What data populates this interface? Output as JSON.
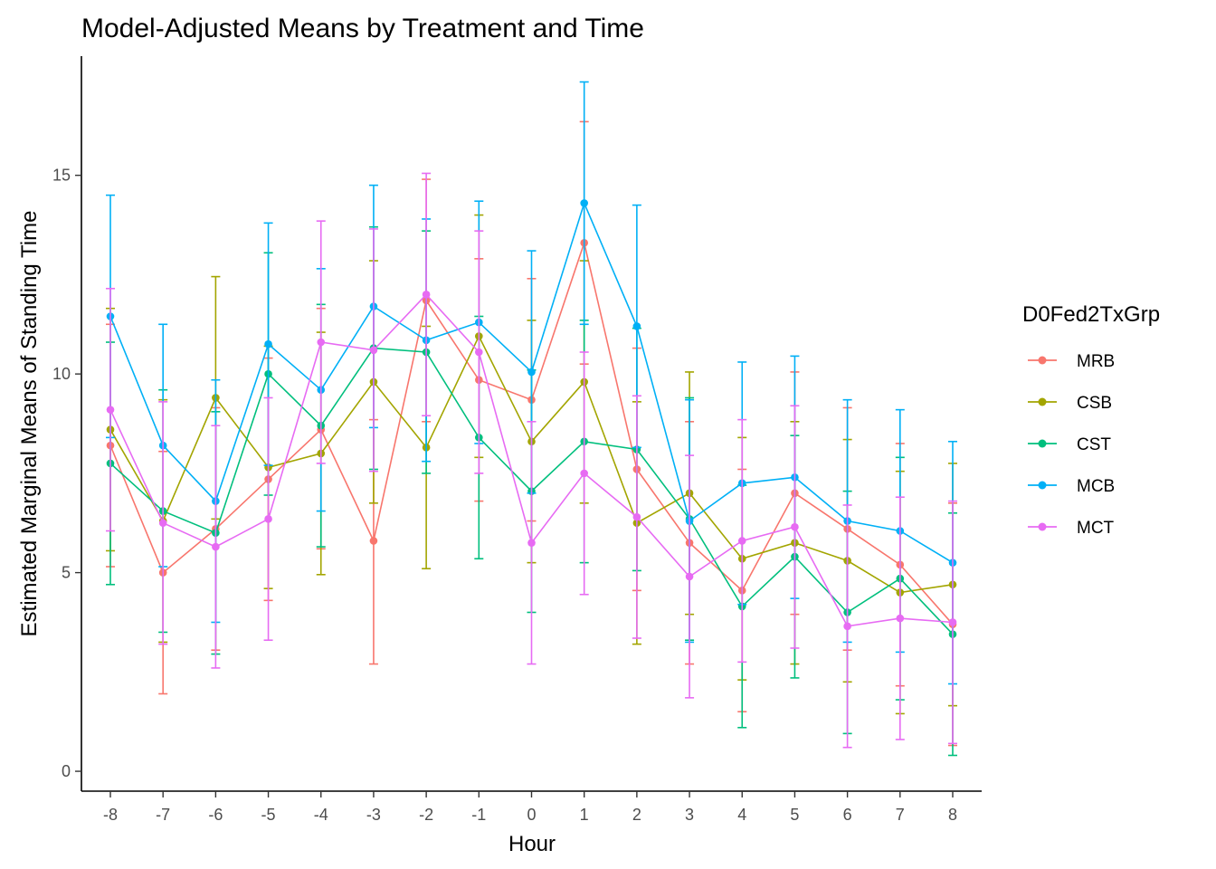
{
  "chart_data": {
    "type": "line",
    "title": "Model-Adjusted Means by Treatment and Time",
    "xlabel": "Hour",
    "ylabel": "Estimated Marginal Means of Standing Time",
    "x": [
      -8,
      -7,
      -6,
      -5,
      -4,
      -3,
      -2,
      -1,
      0,
      1,
      2,
      3,
      4,
      5,
      6,
      7,
      8
    ],
    "x_tick_labels": [
      "-8",
      "-7",
      "-6",
      "-5",
      "-4",
      "-3",
      "-2",
      "-1",
      "0",
      "1",
      "2",
      "3",
      "4",
      "5",
      "6",
      "7",
      "8"
    ],
    "y_ticks": [
      0,
      5,
      10,
      15
    ],
    "y_tick_labels": [
      "0",
      "5",
      "10",
      "15"
    ],
    "ylim": [
      -0.5,
      18.0
    ],
    "xlim": [
      -8.55,
      8.55
    ],
    "grid": false,
    "legend": {
      "title": "D0Fed2TxGrp",
      "position": "right"
    },
    "series": [
      {
        "name": "MRB",
        "color": "#F8766D",
        "values": [
          8.2,
          5.0,
          6.1,
          7.35,
          8.6,
          5.8,
          11.85,
          9.85,
          9.35,
          13.3,
          7.6,
          5.75,
          4.55,
          7.0,
          6.1,
          5.2,
          3.7
        ],
        "lower": [
          5.15,
          1.95,
          3.05,
          4.3,
          5.6,
          2.7,
          8.8,
          6.8,
          6.3,
          10.25,
          4.55,
          2.7,
          1.5,
          3.95,
          3.05,
          2.15,
          0.65
        ],
        "upper": [
          11.25,
          8.05,
          9.15,
          10.4,
          11.65,
          8.85,
          14.9,
          12.9,
          12.4,
          16.35,
          10.65,
          8.8,
          7.6,
          10.05,
          9.15,
          8.25,
          6.75
        ]
      },
      {
        "name": "CSB",
        "color": "#A3A500",
        "values": [
          8.6,
          6.3,
          9.4,
          7.65,
          8.0,
          9.8,
          8.15,
          10.95,
          8.3,
          9.8,
          6.25,
          7.0,
          5.35,
          5.75,
          5.3,
          4.5,
          4.7
        ],
        "lower": [
          5.55,
          3.25,
          6.35,
          4.6,
          4.95,
          6.75,
          5.1,
          7.9,
          5.25,
          6.75,
          3.2,
          3.95,
          2.3,
          2.7,
          2.25,
          1.45,
          1.65
        ],
        "upper": [
          11.65,
          9.35,
          12.45,
          10.7,
          11.05,
          12.85,
          11.2,
          14.0,
          11.35,
          12.85,
          9.3,
          10.05,
          8.4,
          8.8,
          8.35,
          7.55,
          7.75
        ]
      },
      {
        "name": "CST",
        "color": "#00BF7D",
        "values": [
          7.75,
          6.55,
          6.0,
          10.0,
          8.7,
          10.65,
          10.55,
          8.4,
          7.05,
          8.3,
          8.1,
          6.35,
          4.15,
          5.4,
          4.0,
          4.85,
          3.45
        ],
        "lower": [
          4.7,
          3.5,
          2.95,
          6.95,
          5.65,
          7.6,
          7.5,
          5.35,
          4.0,
          5.25,
          5.05,
          3.3,
          1.1,
          2.35,
          0.95,
          1.8,
          0.4
        ],
        "upper": [
          10.8,
          9.6,
          9.05,
          13.05,
          11.75,
          13.7,
          13.6,
          11.45,
          10.1,
          11.35,
          11.15,
          9.4,
          7.2,
          8.45,
          7.05,
          7.9,
          6.5
        ]
      },
      {
        "name": "MCB",
        "color": "#00B0F6",
        "values": [
          11.45,
          8.2,
          6.8,
          10.75,
          9.6,
          11.7,
          10.85,
          11.3,
          10.05,
          14.3,
          11.2,
          6.3,
          7.25,
          7.4,
          6.3,
          6.05,
          5.25
        ],
        "lower": [
          8.4,
          5.15,
          3.75,
          7.7,
          6.55,
          8.65,
          7.8,
          8.25,
          7.0,
          11.25,
          8.15,
          3.25,
          4.2,
          4.35,
          3.25,
          3.0,
          2.2
        ],
        "upper": [
          14.5,
          11.25,
          9.85,
          13.8,
          12.65,
          14.75,
          13.9,
          14.35,
          13.1,
          17.35,
          14.25,
          9.35,
          10.3,
          10.45,
          9.35,
          9.1,
          8.3
        ]
      },
      {
        "name": "MCT",
        "color": "#E76BF3",
        "values": [
          9.1,
          6.25,
          5.65,
          6.35,
          10.8,
          10.6,
          12.0,
          10.55,
          5.75,
          7.5,
          6.4,
          4.9,
          5.8,
          6.15,
          3.65,
          3.85,
          3.75
        ],
        "lower": [
          6.05,
          3.2,
          2.6,
          3.3,
          7.75,
          7.55,
          8.95,
          7.5,
          2.7,
          4.45,
          3.35,
          1.85,
          2.75,
          3.1,
          0.6,
          0.8,
          0.7
        ],
        "upper": [
          12.15,
          9.3,
          8.7,
          9.4,
          13.85,
          13.65,
          15.05,
          13.6,
          8.8,
          10.55,
          9.45,
          7.95,
          8.85,
          9.2,
          6.7,
          6.9,
          6.8
        ]
      }
    ]
  }
}
